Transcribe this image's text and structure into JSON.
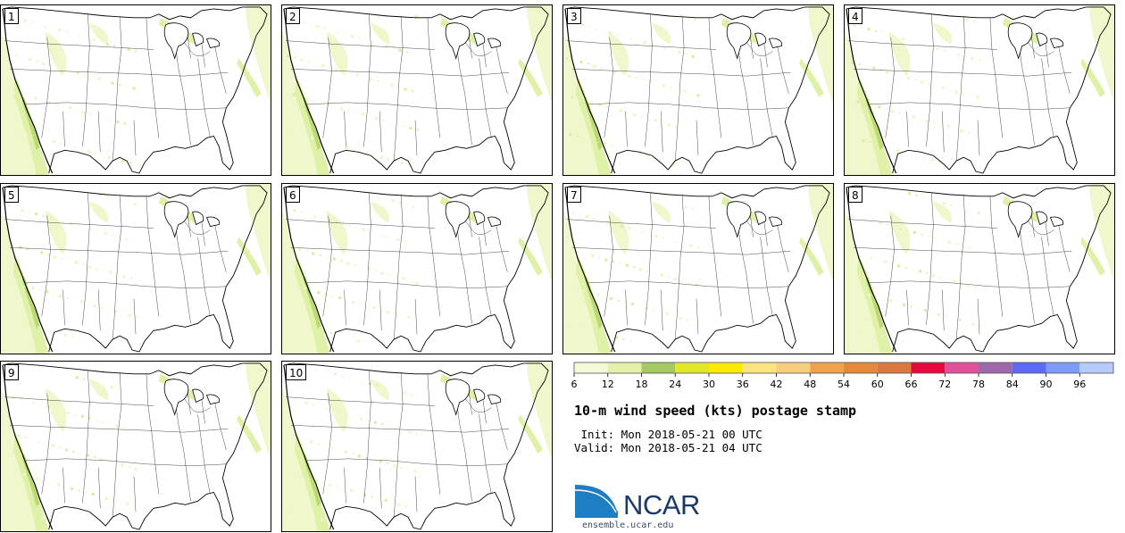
{
  "panels": [
    {
      "label": "1"
    },
    {
      "label": "2"
    },
    {
      "label": "3"
    },
    {
      "label": "4"
    },
    {
      "label": "5"
    },
    {
      "label": "6"
    },
    {
      "label": "7"
    },
    {
      "label": "8"
    },
    {
      "label": "9"
    },
    {
      "label": "10"
    }
  ],
  "legend": {
    "colors": [
      "#f4f9d6",
      "#e3f2a8",
      "#a7c961",
      "#e1e825",
      "#fdea02",
      "#fde481",
      "#f9cd7e",
      "#eea24a",
      "#e3893b",
      "#d8793f",
      "#e8083e",
      "#e1509a",
      "#9f68aa",
      "#5d6af4",
      "#7d9bf7",
      "#b6cbfa"
    ],
    "ticks": [
      "6",
      "12",
      "18",
      "24",
      "30",
      "36",
      "42",
      "48",
      "54",
      "60",
      "66",
      "72",
      "78",
      "84",
      "90",
      "96"
    ]
  },
  "title": "10-m wind speed (kts) postage stamp",
  "init_line": " Init: Mon 2018-05-21 00 UTC",
  "valid_line": "Valid: Mon 2018-05-21 04 UTC",
  "logo_text": "NCAR",
  "site": "ensemble.ucar.edu",
  "map_colors": {
    "light": "#eef6c8",
    "mid": "#dcefa0",
    "strong": "#b7d86a",
    "border": "#000000"
  }
}
